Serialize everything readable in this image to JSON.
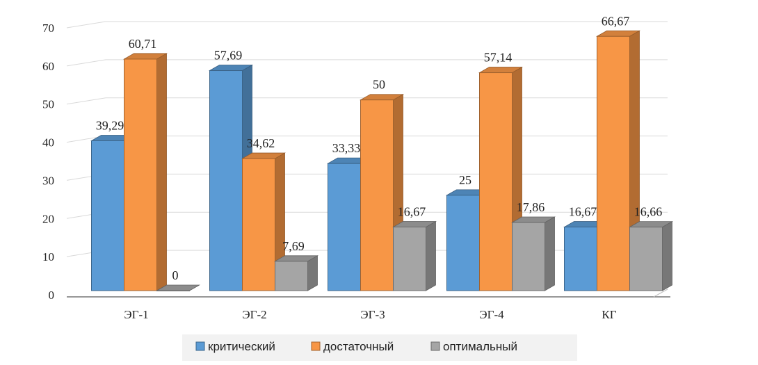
{
  "chart_data": {
    "type": "bar",
    "title": "",
    "xlabel": "",
    "ylabel": "",
    "categories": [
      "ЭГ-1",
      "ЭГ-2",
      "ЭГ-3",
      "ЭГ-4",
      "КГ"
    ],
    "series": [
      {
        "name": "критический",
        "color": "#5b9bd5",
        "values": [
          39.29,
          57.69,
          33.33,
          25,
          16.67
        ],
        "labels": [
          "39,29",
          "57,69",
          "33,33",
          "25",
          "16,67"
        ]
      },
      {
        "name": "достаточный",
        "color": "#f79646",
        "values": [
          60.71,
          34.62,
          50,
          57.14,
          66.67
        ],
        "labels": [
          "60,71",
          "34,62",
          "50",
          "57,14",
          "66,67"
        ]
      },
      {
        "name": "оптимальный",
        "color": "#a5a5a5",
        "values": [
          0,
          7.69,
          16.67,
          17.86,
          16.66
        ],
        "labels": [
          "0",
          "7,69",
          "16,67",
          "17,86",
          "16,66"
        ]
      }
    ],
    "ylim": [
      0,
      70
    ],
    "yticks": [
      "0",
      "10",
      "20",
      "30",
      "40",
      "50",
      "60",
      "70"
    ],
    "grid": true,
    "legend_position": "bottom",
    "style": "3d-clustered-column"
  }
}
